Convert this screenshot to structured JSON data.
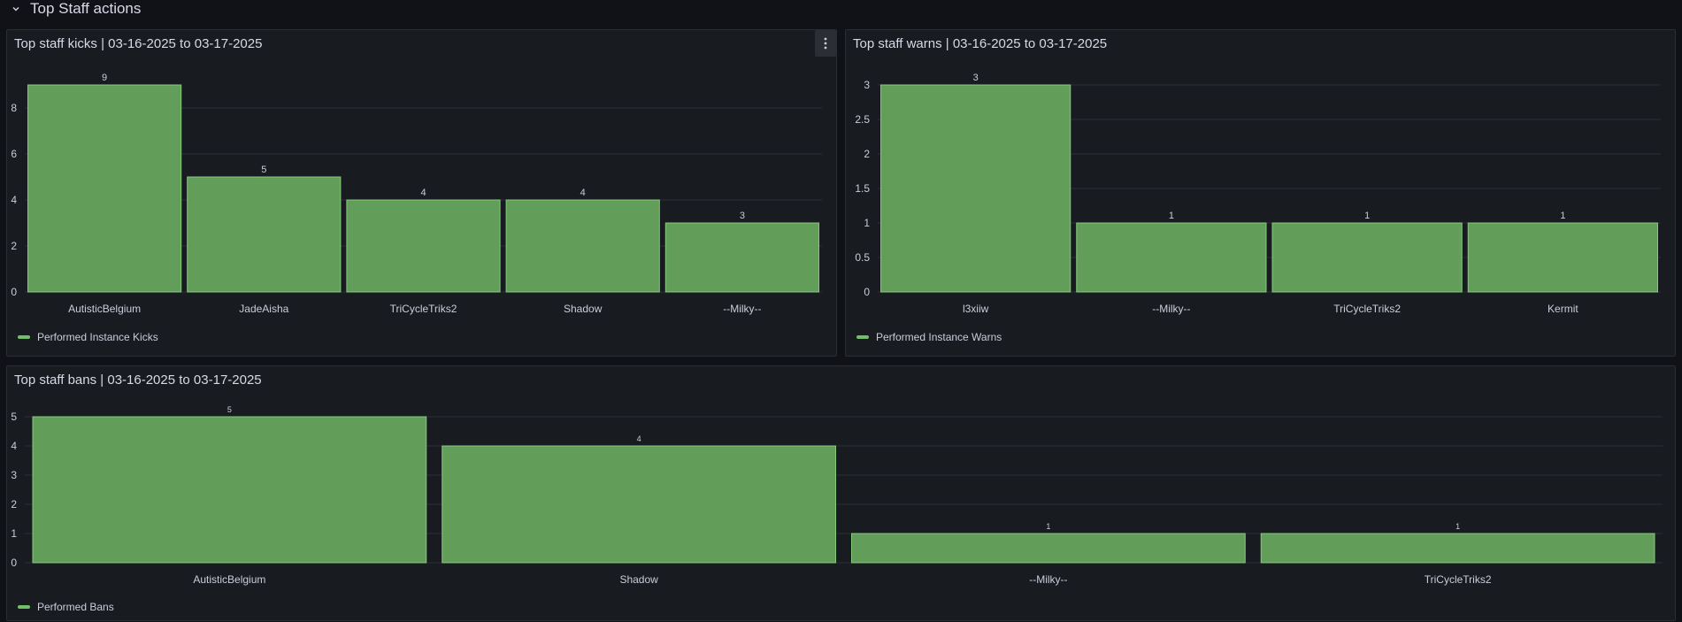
{
  "row": {
    "title": "Top Staff actions"
  },
  "colors": {
    "bar": "#629e5a",
    "bar_border": "#86c97c",
    "legend": "#73bf69",
    "grid": "#2c3038",
    "text": "#ccccdc"
  },
  "panels": {
    "kicks": {
      "title": "Top staff kicks | 03-16-2025 to 03-17-2025",
      "menu_icon": "kebab-menu-icon"
    },
    "warns": {
      "title": "Top staff warns | 03-16-2025 to 03-17-2025"
    },
    "bans": {
      "title": "Top staff bans | 03-16-2025 to 03-17-2025"
    }
  },
  "chart_data": [
    {
      "id": "kicks",
      "type": "bar",
      "title": "Top staff kicks | 03-16-2025 to 03-17-2025",
      "categories": [
        "AutisticBelgium",
        "JadeAisha",
        "TriCycleTriks2",
        "Shadow",
        "--Milky--"
      ],
      "series": [
        {
          "name": "Performed Instance Kicks",
          "values": [
            9,
            5,
            4,
            4,
            3
          ]
        }
      ],
      "ylim": [
        0,
        9
      ],
      "yticks": [
        "0",
        "2",
        "4",
        "6",
        "8"
      ],
      "ytick_values": [
        0,
        2,
        4,
        6,
        8
      ],
      "legend": "bottom-left"
    },
    {
      "id": "warns",
      "type": "bar",
      "title": "Top staff warns | 03-16-2025 to 03-17-2025",
      "categories": [
        "l3xiiw",
        "--Milky--",
        "TriCycleTriks2",
        "Kermit"
      ],
      "series": [
        {
          "name": "Performed Instance Warns",
          "values": [
            3,
            1,
            1,
            1
          ]
        }
      ],
      "ylim": [
        0,
        3
      ],
      "yticks": [
        "0",
        "0.5",
        "1",
        "1.5",
        "2",
        "2.5",
        "3"
      ],
      "ytick_values": [
        0,
        0.5,
        1,
        1.5,
        2,
        2.5,
        3
      ],
      "legend": "bottom-left"
    },
    {
      "id": "bans",
      "type": "bar",
      "title": "Top staff bans | 03-16-2025 to 03-17-2025",
      "categories": [
        "AutisticBelgium",
        "Shadow",
        "--Milky--",
        "TriCycleTriks2"
      ],
      "series": [
        {
          "name": "Performed Bans",
          "values": [
            5,
            4,
            1,
            1
          ]
        }
      ],
      "ylim": [
        0,
        5
      ],
      "yticks": [
        "0",
        "1",
        "2",
        "3",
        "4",
        "5"
      ],
      "ytick_values": [
        0,
        1,
        2,
        3,
        4,
        5
      ],
      "legend": "bottom-left"
    }
  ]
}
